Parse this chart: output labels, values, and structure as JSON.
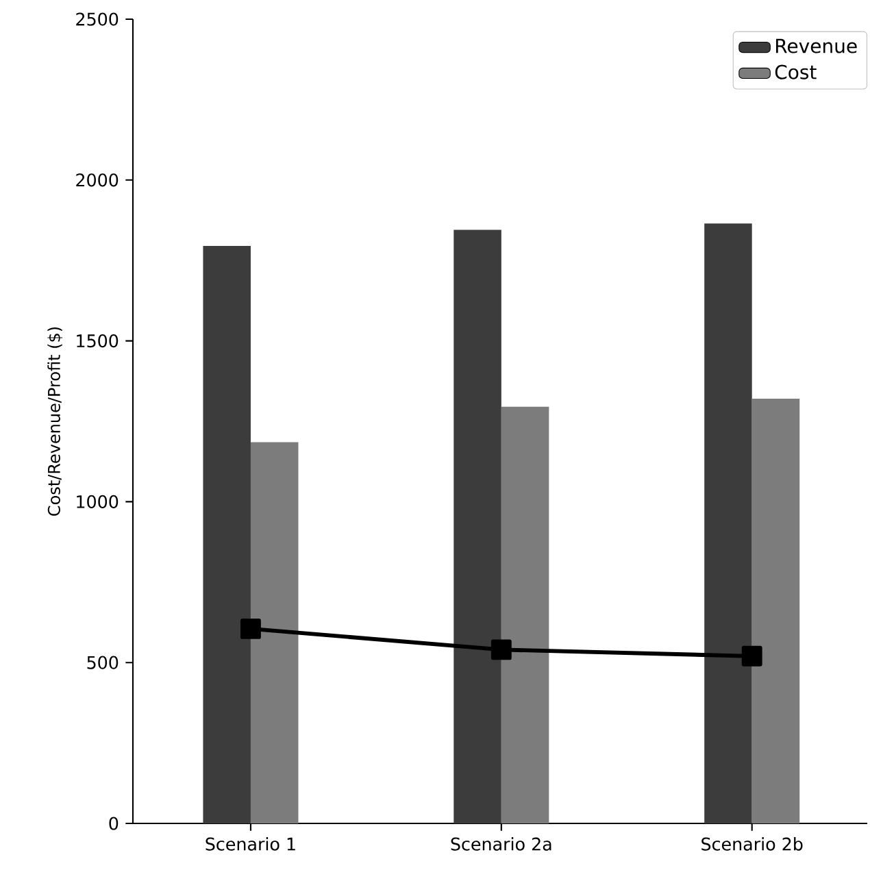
{
  "chart_data": {
    "type": "bar",
    "ylabel": "Cost/Revenue/Profit ($)",
    "categories": [
      "Scenario 1",
      "Scenario 2a",
      "Scenario 2b"
    ],
    "series": [
      {
        "name": "Revenue",
        "color": "#3c3c3c",
        "values": [
          1795,
          1845,
          1865
        ]
      },
      {
        "name": "Cost",
        "color": "#7c7c7c",
        "values": [
          1185,
          1295,
          1320
        ]
      },
      {
        "type": "line",
        "color": "#000000",
        "values": [
          605,
          540,
          520
        ]
      }
    ],
    "ylim": [
      0,
      2500
    ],
    "yticks": [
      0,
      500,
      1000,
      1500,
      2000,
      2500
    ],
    "legend": "top right",
    "marker": "square",
    "line_style": "solid"
  }
}
